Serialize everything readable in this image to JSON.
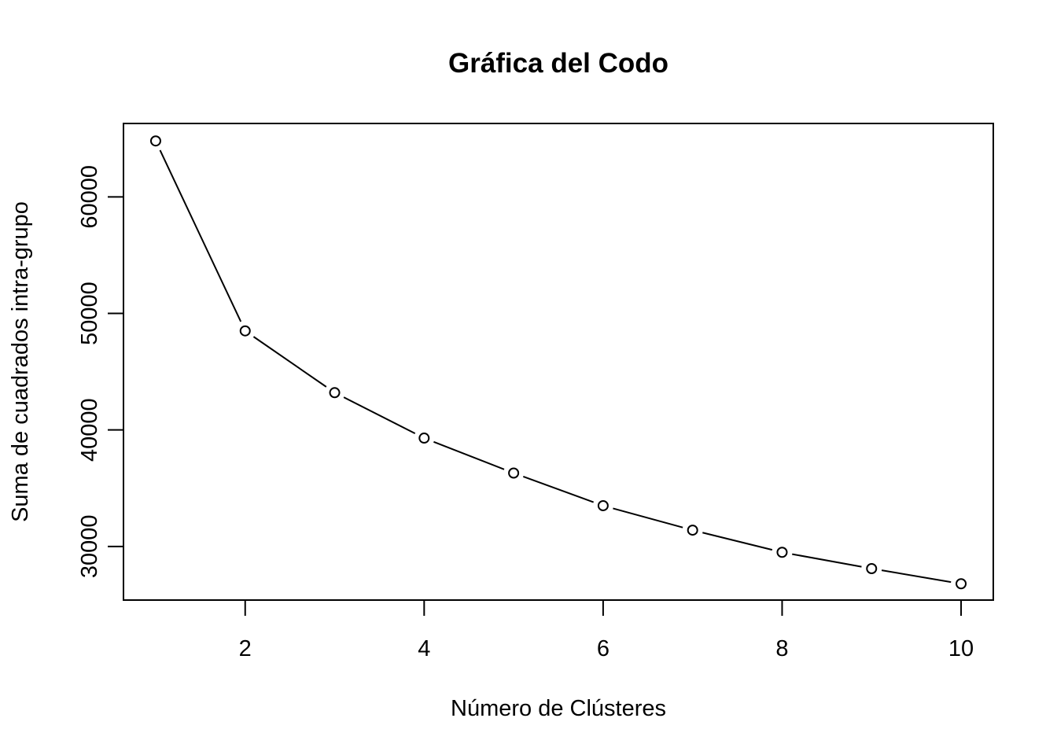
{
  "chart_data": {
    "type": "line",
    "title": "Gráfica del Codo",
    "xlabel": "Número de Clústeres",
    "ylabel": "Suma de cuadrados intra-grupo",
    "x": [
      1,
      2,
      3,
      4,
      5,
      6,
      7,
      8,
      9,
      10
    ],
    "series": [
      {
        "values": [
          64800,
          48500,
          43200,
          39300,
          36300,
          33500,
          31400,
          29500,
          28100,
          26800
        ]
      }
    ],
    "xlim": [
      0.64,
      10.36
    ],
    "ylim": [
      25400,
      66300
    ],
    "xticks": [
      2,
      4,
      6,
      8,
      10
    ],
    "yticks": [
      30000,
      40000,
      50000,
      60000
    ],
    "grid": false,
    "legend": "none",
    "line_color": "#000000",
    "marker": "open-circle"
  }
}
